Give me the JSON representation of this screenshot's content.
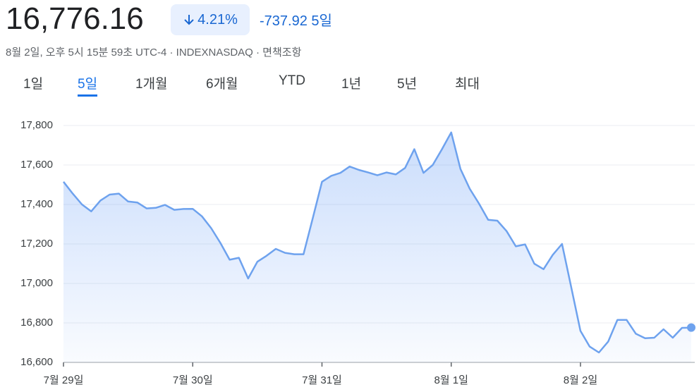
{
  "header": {
    "price": "16,776.16",
    "change_pct": "4.21%",
    "change": "-737.92",
    "period": "5일",
    "subtitle": "8월 2일, 오후 5시 15분 59초 UTC-4 · INDEXNASDAQ · 면책조항"
  },
  "tabs": [
    "1일",
    "5일",
    "1개월",
    "6개월",
    "YTD",
    "1년",
    "5년",
    "최대"
  ],
  "active_tab": 1,
  "chart_data": {
    "type": "area",
    "color": "#6ea2ee",
    "grid": true,
    "categories": [
      "7월 29일",
      null,
      null,
      null,
      null,
      null,
      null,
      null,
      null,
      null,
      null,
      null,
      null,
      null,
      "7월 30일",
      null,
      null,
      null,
      null,
      null,
      null,
      null,
      null,
      null,
      null,
      null,
      null,
      null,
      "7월 31일",
      null,
      null,
      null,
      null,
      null,
      null,
      null,
      null,
      null,
      null,
      null,
      null,
      null,
      "8월 1일",
      null,
      null,
      null,
      null,
      null,
      null,
      null,
      null,
      null,
      null,
      null,
      null,
      null,
      "8월 2일",
      null,
      null,
      null,
      null,
      null,
      null,
      null,
      null,
      null,
      null,
      null,
      null
    ],
    "values": [
      17515,
      17455,
      17400,
      17365,
      17420,
      17450,
      17455,
      17415,
      17410,
      17380,
      17383,
      17398,
      17373,
      17377,
      17378,
      17340,
      17280,
      17205,
      17120,
      17130,
      17025,
      17110,
      17140,
      17175,
      17155,
      17148,
      17148,
      17330,
      17515,
      17545,
      17560,
      17592,
      17575,
      17562,
      17548,
      17562,
      17552,
      17585,
      17680,
      17560,
      17600,
      17680,
      17765,
      17580,
      17480,
      17405,
      17322,
      17318,
      17265,
      17188,
      17198,
      17100,
      17072,
      17145,
      17200,
      16980,
      16760,
      16680,
      16650,
      16705,
      16815,
      16815,
      16745,
      16722,
      16725,
      16768,
      16725,
      16775,
      16776.16
    ],
    "ylim": [
      16600,
      17900
    ],
    "yticks": [
      {
        "value": 16600,
        "label": "16,600"
      },
      {
        "value": 16800,
        "label": "16,800"
      },
      {
        "value": 17000,
        "label": "17,000"
      },
      {
        "value": 17200,
        "label": "17,200"
      },
      {
        "value": 17400,
        "label": "17,400"
      },
      {
        "value": 17600,
        "label": "17,600"
      },
      {
        "value": 17800,
        "label": "17,800"
      }
    ]
  }
}
